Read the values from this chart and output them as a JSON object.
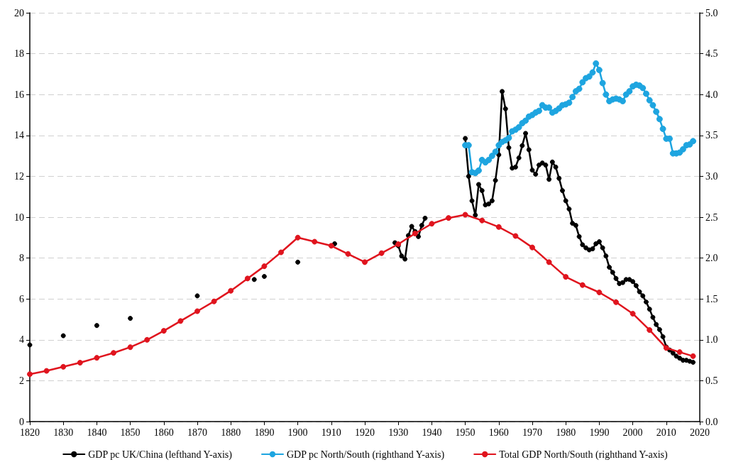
{
  "chart_data": {
    "type": "line",
    "xlim": [
      1820,
      2020
    ],
    "xticks": [
      1820,
      1830,
      1840,
      1850,
      1860,
      1870,
      1880,
      1890,
      1900,
      1910,
      1920,
      1930,
      1940,
      1950,
      1960,
      1970,
      1980,
      1990,
      2000,
      2010,
      2020
    ],
    "ylim": [
      0,
      20
    ],
    "yticks": [
      0,
      2,
      4,
      6,
      8,
      10,
      12,
      14,
      16,
      18,
      20
    ],
    "y2lim": [
      0,
      5
    ],
    "y2ticks": [
      {
        "value": 0,
        "label": "0.0"
      },
      {
        "value": 0.5,
        "label": "0.5"
      },
      {
        "value": 1,
        "label": "1.0"
      },
      {
        "value": 1.5,
        "label": "1.5"
      },
      {
        "value": 2,
        "label": "2.0"
      },
      {
        "value": 2.5,
        "label": "2.5"
      },
      {
        "value": 3,
        "label": "3.0"
      },
      {
        "value": 3.5,
        "label": "3.5"
      },
      {
        "value": 4,
        "label": "4.0"
      },
      {
        "value": 4.5,
        "label": "4.5"
      },
      {
        "value": 5,
        "label": "5.0"
      }
    ],
    "grid": "y",
    "legend": "bottom",
    "marker": "circle",
    "series": [
      {
        "name": "GDP pc UK/China (lefthand Y-axis)",
        "color": "#000000",
        "x": [
          1820,
          1825,
          1830,
          1835,
          1840,
          1845,
          1850,
          1860,
          1870,
          1880,
          1887,
          1888,
          1890,
          1895,
          1900,
          1905,
          1911,
          1920,
          1929,
          1930,
          1931,
          1932,
          1933,
          1934,
          1935,
          1936,
          1937,
          1938,
          1945,
          1950,
          1951,
          1952,
          1953,
          1954,
          1955,
          1956,
          1957,
          1958,
          1959,
          1960,
          1961,
          1962,
          1963,
          1964,
          1965,
          1966,
          1967,
          1968,
          1969,
          1970,
          1971,
          1972,
          1973,
          1974,
          1975,
          1976,
          1977,
          1978,
          1979,
          1980,
          1981,
          1982,
          1983,
          1984,
          1985,
          1986,
          1987,
          1988,
          1989,
          1990,
          1991,
          1992,
          1993,
          1994,
          1995,
          1996,
          1997,
          1998,
          1999,
          2000,
          2001,
          2002,
          2003,
          2004,
          2005,
          2006,
          2007,
          2008,
          2009,
          2010,
          2011,
          2012,
          2013,
          2014,
          2015,
          2016,
          2017,
          2018
        ],
        "values": [
          3.75,
          null,
          4.2,
          null,
          4.7,
          null,
          5.05,
          null,
          6.15,
          null,
          6.95,
          null,
          7.1,
          null,
          7.8,
          null,
          8.7,
          null,
          8.75,
          8.6,
          8.1,
          7.95,
          9.1,
          9.55,
          9.3,
          9.05,
          9.6,
          9.95,
          null,
          13.85,
          12.0,
          10.8,
          10.1,
          11.6,
          11.3,
          10.6,
          10.65,
          10.8,
          11.8,
          13.05,
          16.15,
          15.3,
          13.4,
          12.4,
          12.45,
          12.9,
          13.5,
          14.1,
          13.3,
          12.3,
          12.1,
          12.55,
          12.65,
          12.55,
          11.85,
          12.7,
          12.45,
          11.9,
          11.3,
          10.8,
          10.4,
          9.7,
          9.6,
          9.05,
          8.65,
          8.5,
          8.4,
          8.45,
          8.7,
          8.8,
          8.5,
          8.1,
          7.55,
          7.3,
          7.0,
          6.75,
          6.8,
          6.95,
          6.95,
          6.85,
          6.65,
          6.35,
          6.15,
          5.85,
          5.5,
          5.1,
          4.75,
          4.5,
          4.15,
          3.65,
          3.5,
          3.35,
          3.2,
          3.1,
          3.0,
          3.0,
          2.95,
          2.9
        ]
      },
      {
        "name": "GDP pc North/South (righthand Y-axis)",
        "color": "#1ea5e0",
        "axis": "y2",
        "x": [
          1950,
          1951,
          1952,
          1953,
          1954,
          1955,
          1956,
          1957,
          1958,
          1959,
          1960,
          1961,
          1962,
          1963,
          1964,
          1965,
          1966,
          1967,
          1968,
          1969,
          1970,
          1971,
          1972,
          1973,
          1974,
          1975,
          1976,
          1977,
          1978,
          1979,
          1980,
          1981,
          1982,
          1983,
          1984,
          1985,
          1986,
          1987,
          1988,
          1989,
          1990,
          1991,
          1992,
          1993,
          1994,
          1995,
          1996,
          1997,
          1998,
          1999,
          2000,
          2001,
          2002,
          2003,
          2004,
          2005,
          2006,
          2007,
          2008,
          2009,
          2010,
          2011,
          2012,
          2013,
          2014,
          2015,
          2016,
          2017,
          2018
        ],
        "values": [
          3.38,
          3.38,
          3.05,
          3.04,
          3.07,
          3.2,
          3.17,
          3.2,
          3.25,
          3.3,
          3.38,
          3.42,
          3.44,
          3.47,
          3.55,
          3.57,
          3.6,
          3.65,
          3.68,
          3.73,
          3.75,
          3.78,
          3.8,
          3.87,
          3.84,
          3.84,
          3.78,
          3.8,
          3.83,
          3.87,
          3.88,
          3.9,
          3.97,
          4.04,
          4.07,
          4.15,
          4.2,
          4.22,
          4.27,
          4.38,
          4.3,
          4.14,
          4.0,
          3.92,
          3.94,
          3.95,
          3.94,
          3.92,
          4.0,
          4.04,
          4.1,
          4.12,
          4.11,
          4.08,
          4.01,
          3.93,
          3.87,
          3.79,
          3.7,
          3.58,
          3.46,
          3.46,
          3.28,
          3.28,
          3.29,
          3.33,
          3.38,
          3.39,
          3.43
        ]
      },
      {
        "name": "Total GDP North/South (righthand Y-axis)",
        "color": "#e0141e",
        "axis": "y2",
        "x": [
          1820,
          1825,
          1830,
          1835,
          1840,
          1845,
          1850,
          1855,
          1860,
          1865,
          1870,
          1875,
          1880,
          1885,
          1890,
          1895,
          1900,
          1905,
          1910,
          1915,
          1920,
          1925,
          1930,
          1935,
          1940,
          1945,
          1950,
          1955,
          1960,
          1965,
          1970,
          1975,
          1980,
          1985,
          1990,
          1995,
          2000,
          2005,
          2010,
          2014,
          2018
        ],
        "values": [
          0.58,
          0.62,
          0.67,
          0.72,
          0.78,
          0.84,
          0.91,
          1.0,
          1.11,
          1.23,
          1.35,
          1.47,
          1.6,
          1.75,
          1.9,
          2.07,
          2.25,
          2.2,
          2.15,
          2.05,
          1.95,
          2.06,
          2.17,
          2.3,
          2.42,
          2.49,
          2.53,
          2.46,
          2.38,
          2.27,
          2.13,
          1.95,
          1.77,
          1.67,
          1.58,
          1.46,
          1.32,
          1.12,
          0.9,
          0.85,
          0.8
        ]
      }
    ]
  }
}
